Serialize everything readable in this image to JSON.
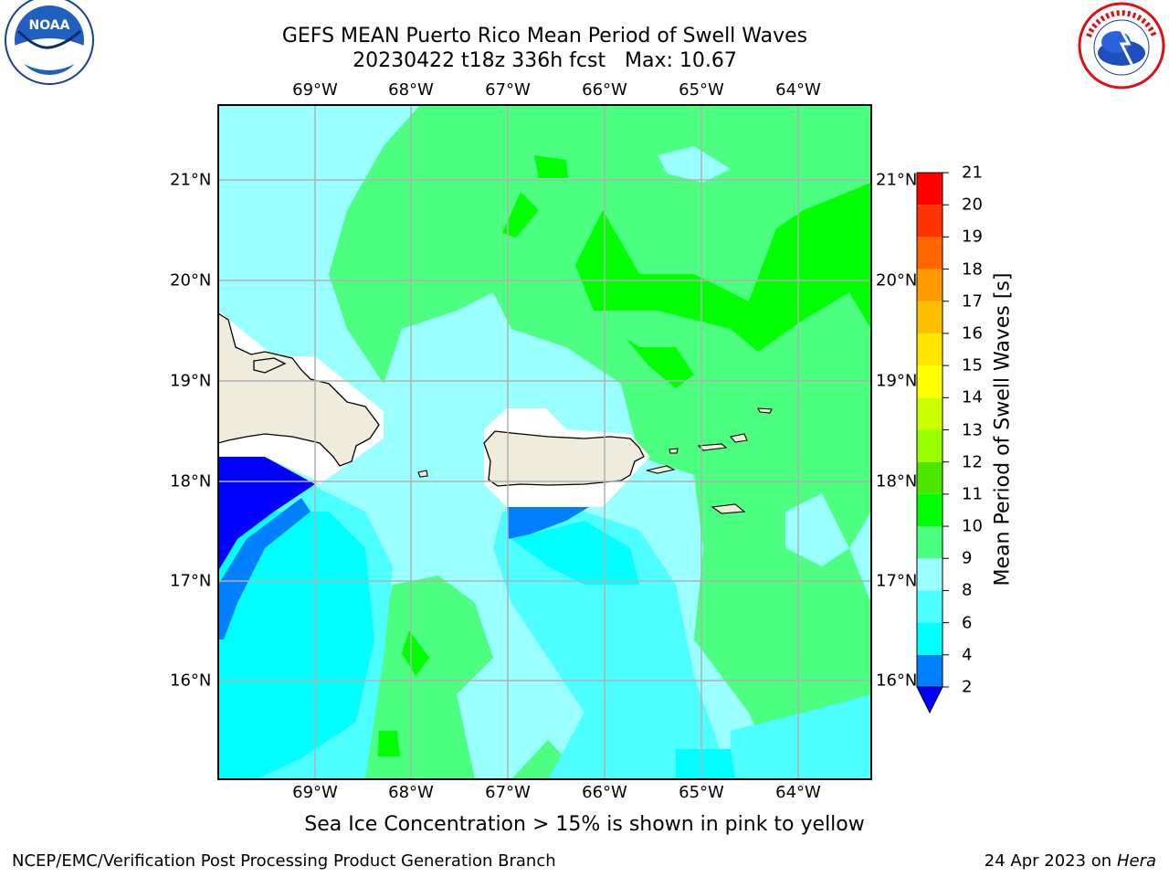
{
  "title": {
    "line1": "GEFS MEAN Puerto Rico Mean Period of Swell Waves",
    "line2": "20230422 t18z 336h fcst   Max: 10.67"
  },
  "axes": {
    "lon_labels": [
      "69°W",
      "68°W",
      "67°W",
      "66°W",
      "65°W",
      "64°W"
    ],
    "lat_labels": [
      "21°N",
      "20°N",
      "19°N",
      "18°N",
      "17°N",
      "16°N"
    ],
    "lon_range": [
      -70.0,
      -63.25
    ],
    "lat_range": [
      15.0,
      21.75
    ],
    "grid": true
  },
  "colorbar": {
    "label": "Mean Period of Swell Waves [s]",
    "ticks": [
      "2",
      "4",
      "6",
      "8",
      "9",
      "10",
      "11",
      "12",
      "13",
      "14",
      "15",
      "16",
      "17",
      "18",
      "19",
      "20",
      "21"
    ],
    "colors": [
      "#0000ff",
      "#0080ff",
      "#00ffff",
      "#4dffff",
      "#99ffff",
      "#4dff80",
      "#00ff00",
      "#4ce600",
      "#99ff00",
      "#ccff00",
      "#ffff00",
      "#ffe600",
      "#ffbf00",
      "#ff9900",
      "#ff6600",
      "#ff3300",
      "#ff0000"
    ],
    "extend": "min"
  },
  "note": "Sea Ice Concentration > 15% is shown in pink to yellow",
  "footer": {
    "left": "NCEP/EMC/Verification Post Processing Product Generation Branch",
    "date": "24 Apr 2023 on",
    "machine": "Hera"
  },
  "logos": {
    "left": {
      "icon": "noaa-logo",
      "text": "NOAA"
    },
    "right": {
      "icon": "nws-logo",
      "text": "NATIONAL WEATHER SERVICE"
    }
  }
}
